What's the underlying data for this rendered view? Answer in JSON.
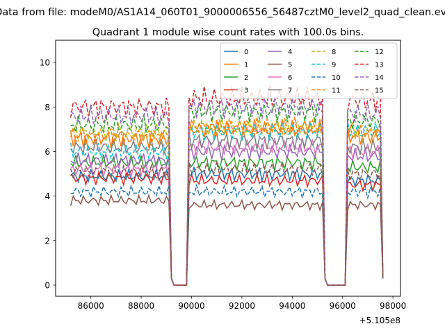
{
  "chart_data": {
    "type": "line",
    "suptitle": "Data from file: modeM0/AS1A14_060T01_9000006556_56487cztM0_level2_quad_clean.evt",
    "title": "Quadrant 1 module wise count rates with 100.0s bins.",
    "xlabel": "",
    "ylabel": "",
    "x_offset_label": "+5.105e8",
    "xlim": [
      84600,
      98300
    ],
    "ylim": [
      -0.5,
      11.0
    ],
    "xticks": [
      86000,
      88000,
      90000,
      92000,
      94000,
      96000,
      98000
    ],
    "yticks": [
      0,
      2,
      4,
      6,
      8,
      10
    ],
    "grid": false,
    "legend": {
      "placement": "top-right",
      "columns": 4
    },
    "time_axis": {
      "start": 85200,
      "step": 100,
      "points": 125
    },
    "segments": [
      {
        "from": 85200,
        "to": 89100
      },
      {
        "from": 89850,
        "to": 95250
      },
      {
        "from": 96200,
        "to": 97500
      }
    ],
    "gaps": [
      {
        "from": 89300,
        "to": 89800
      },
      {
        "from": 95400,
        "to": 96100
      }
    ],
    "series": [
      {
        "name": "0",
        "color": "#1f77b4",
        "dash": "solid",
        "levels": [
          4.9,
          5.0,
          4.7
        ]
      },
      {
        "name": "1",
        "color": "#ff7f0e",
        "dash": "solid",
        "levels": [
          6.6,
          7.0,
          6.7
        ]
      },
      {
        "name": "2",
        "color": "#2ca02c",
        "dash": "solid",
        "levels": [
          5.5,
          5.5,
          5.3
        ]
      },
      {
        "name": "3",
        "color": "#d62728",
        "dash": "solid",
        "levels": [
          4.8,
          4.7,
          4.5
        ]
      },
      {
        "name": "4",
        "color": "#9467bd",
        "dash": "solid",
        "levels": [
          5.6,
          6.0,
          5.8
        ]
      },
      {
        "name": "5",
        "color": "#8c564b",
        "dash": "solid",
        "levels": [
          3.8,
          3.6,
          3.6
        ]
      },
      {
        "name": "6",
        "color": "#e377c2",
        "dash": "solid",
        "levels": [
          5.2,
          6.2,
          6.0
        ]
      },
      {
        "name": "7",
        "color": "#7f7f7f",
        "dash": "solid",
        "levels": [
          6.2,
          6.5,
          6.2
        ]
      },
      {
        "name": "8",
        "color": "#bcbd22",
        "dash": "dashed",
        "levels": [
          6.9,
          7.1,
          7.0
        ]
      },
      {
        "name": "9",
        "color": "#17becf",
        "dash": "dashed",
        "levels": [
          6.0,
          6.9,
          6.9
        ]
      },
      {
        "name": "10",
        "color": "#1f77b4",
        "dash": "dashed",
        "levels": [
          4.2,
          4.2,
          4.2
        ]
      },
      {
        "name": "11",
        "color": "#ff7f0e",
        "dash": "dashed",
        "levels": [
          6.7,
          7.1,
          6.8
        ]
      },
      {
        "name": "12",
        "color": "#2ca02c",
        "dash": "dashed",
        "levels": [
          7.2,
          7.8,
          7.4
        ]
      },
      {
        "name": "13",
        "color": "#d62728",
        "dash": "dashed",
        "levels": [
          8.0,
          8.4,
          8.3
        ]
      },
      {
        "name": "14",
        "color": "#9467bd",
        "dash": "dashed",
        "levels": [
          7.6,
          8.0,
          7.7
        ]
      },
      {
        "name": "15",
        "color": "#8c564b",
        "dash": "dashed",
        "levels": [
          5.1,
          5.2,
          5.0
        ]
      }
    ]
  }
}
